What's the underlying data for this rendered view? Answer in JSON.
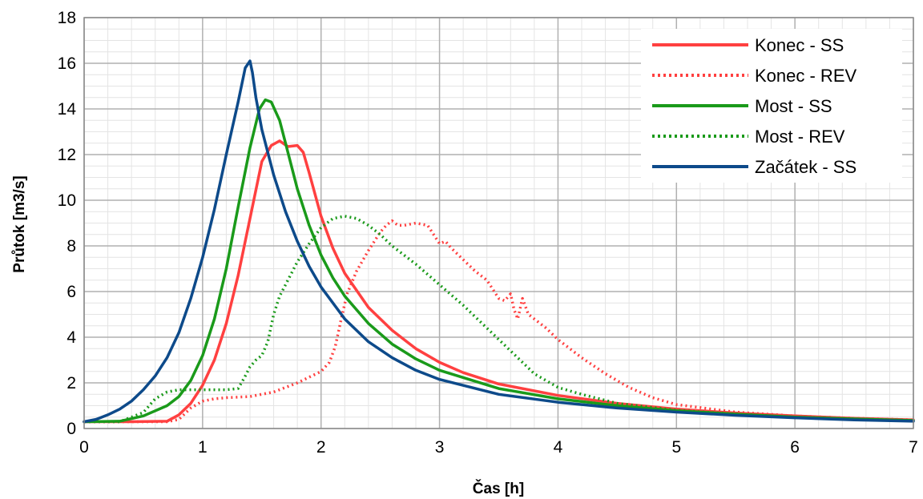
{
  "chart_data": {
    "type": "line",
    "title": "",
    "xlabel": "Čas [h]",
    "ylabel": "Průtok [m3/s]",
    "xlim": [
      0,
      7
    ],
    "ylim": [
      0,
      18
    ],
    "x_ticks": [
      0,
      1,
      2,
      3,
      4,
      5,
      6,
      7
    ],
    "y_ticks": [
      0,
      2,
      4,
      6,
      8,
      10,
      12,
      14,
      16,
      18
    ],
    "grid": true,
    "legend_position": "top-right",
    "series": [
      {
        "name": "Konec - SS",
        "color": "#ff4040",
        "style": "solid",
        "points": [
          [
            0,
            0.3
          ],
          [
            0.4,
            0.3
          ],
          [
            0.7,
            0.32
          ],
          [
            0.8,
            0.6
          ],
          [
            0.9,
            1.1
          ],
          [
            1.0,
            1.9
          ],
          [
            1.1,
            3.0
          ],
          [
            1.2,
            4.6
          ],
          [
            1.3,
            6.7
          ],
          [
            1.4,
            9.2
          ],
          [
            1.5,
            11.7
          ],
          [
            1.58,
            12.4
          ],
          [
            1.65,
            12.6
          ],
          [
            1.72,
            12.35
          ],
          [
            1.8,
            12.4
          ],
          [
            1.85,
            12.1
          ],
          [
            1.9,
            11.2
          ],
          [
            2.0,
            9.3
          ],
          [
            2.1,
            7.9
          ],
          [
            2.2,
            6.8
          ],
          [
            2.4,
            5.3
          ],
          [
            2.6,
            4.3
          ],
          [
            2.8,
            3.5
          ],
          [
            3.0,
            2.9
          ],
          [
            3.2,
            2.45
          ],
          [
            3.5,
            1.95
          ],
          [
            4.0,
            1.45
          ],
          [
            4.5,
            1.1
          ],
          [
            5.0,
            0.85
          ],
          [
            5.5,
            0.68
          ],
          [
            6.0,
            0.55
          ],
          [
            6.5,
            0.45
          ],
          [
            7.0,
            0.38
          ]
        ]
      },
      {
        "name": "Konec - REV",
        "color": "#ff4040",
        "style": "dotted",
        "points": [
          [
            0,
            0.3
          ],
          [
            0.7,
            0.3
          ],
          [
            0.8,
            0.4
          ],
          [
            0.9,
            0.9
          ],
          [
            1.0,
            1.2
          ],
          [
            1.1,
            1.3
          ],
          [
            1.2,
            1.35
          ],
          [
            1.4,
            1.4
          ],
          [
            1.6,
            1.6
          ],
          [
            1.8,
            2.0
          ],
          [
            2.0,
            2.5
          ],
          [
            2.07,
            2.9
          ],
          [
            2.12,
            3.6
          ],
          [
            2.17,
            4.8
          ],
          [
            2.22,
            5.9
          ],
          [
            2.3,
            6.9
          ],
          [
            2.4,
            7.8
          ],
          [
            2.5,
            8.6
          ],
          [
            2.55,
            8.9
          ],
          [
            2.6,
            9.1
          ],
          [
            2.65,
            8.9
          ],
          [
            2.7,
            8.9
          ],
          [
            2.8,
            9.0
          ],
          [
            2.9,
            8.9
          ],
          [
            2.95,
            8.5
          ],
          [
            3.0,
            8.1
          ],
          [
            3.05,
            8.2
          ],
          [
            3.1,
            7.9
          ],
          [
            3.2,
            7.4
          ],
          [
            3.3,
            6.9
          ],
          [
            3.4,
            6.5
          ],
          [
            3.5,
            5.7
          ],
          [
            3.55,
            5.6
          ],
          [
            3.6,
            5.9
          ],
          [
            3.63,
            5.2
          ],
          [
            3.66,
            4.8
          ],
          [
            3.7,
            5.7
          ],
          [
            3.75,
            5.0
          ],
          [
            3.8,
            4.8
          ],
          [
            3.9,
            4.4
          ],
          [
            4.0,
            3.9
          ],
          [
            4.2,
            3.1
          ],
          [
            4.4,
            2.4
          ],
          [
            4.6,
            1.8
          ],
          [
            4.8,
            1.35
          ],
          [
            5.0,
            1.05
          ],
          [
            5.5,
            0.72
          ],
          [
            6.0,
            0.55
          ],
          [
            6.5,
            0.45
          ],
          [
            7.0,
            0.38
          ]
        ]
      },
      {
        "name": "Most - SS",
        "color": "#1a9a1a",
        "style": "solid",
        "points": [
          [
            0,
            0.3
          ],
          [
            0.3,
            0.32
          ],
          [
            0.5,
            0.55
          ],
          [
            0.7,
            1.0
          ],
          [
            0.8,
            1.4
          ],
          [
            0.9,
            2.1
          ],
          [
            1.0,
            3.2
          ],
          [
            1.1,
            4.8
          ],
          [
            1.2,
            7.0
          ],
          [
            1.3,
            9.7
          ],
          [
            1.4,
            12.3
          ],
          [
            1.48,
            14.0
          ],
          [
            1.53,
            14.4
          ],
          [
            1.58,
            14.3
          ],
          [
            1.65,
            13.5
          ],
          [
            1.7,
            12.5
          ],
          [
            1.8,
            10.5
          ],
          [
            1.9,
            8.9
          ],
          [
            2.0,
            7.6
          ],
          [
            2.1,
            6.6
          ],
          [
            2.2,
            5.8
          ],
          [
            2.4,
            4.6
          ],
          [
            2.6,
            3.7
          ],
          [
            2.8,
            3.05
          ],
          [
            3.0,
            2.55
          ],
          [
            3.5,
            1.75
          ],
          [
            4.0,
            1.3
          ],
          [
            4.5,
            1.0
          ],
          [
            5.0,
            0.78
          ],
          [
            5.5,
            0.63
          ],
          [
            6.0,
            0.5
          ],
          [
            6.5,
            0.42
          ],
          [
            7.0,
            0.35
          ]
        ]
      },
      {
        "name": "Most - REV",
        "color": "#1a9a1a",
        "style": "dotted",
        "points": [
          [
            0,
            0.3
          ],
          [
            0.3,
            0.3
          ],
          [
            0.5,
            0.7
          ],
          [
            0.6,
            1.3
          ],
          [
            0.7,
            1.6
          ],
          [
            0.8,
            1.7
          ],
          [
            1.0,
            1.7
          ],
          [
            1.2,
            1.7
          ],
          [
            1.3,
            1.75
          ],
          [
            1.35,
            2.2
          ],
          [
            1.4,
            2.7
          ],
          [
            1.45,
            3.0
          ],
          [
            1.5,
            3.2
          ],
          [
            1.55,
            3.8
          ],
          [
            1.6,
            5.0
          ],
          [
            1.65,
            5.8
          ],
          [
            1.7,
            6.3
          ],
          [
            1.8,
            7.3
          ],
          [
            1.9,
            8.1
          ],
          [
            2.0,
            8.8
          ],
          [
            2.1,
            9.2
          ],
          [
            2.2,
            9.3
          ],
          [
            2.3,
            9.2
          ],
          [
            2.4,
            8.9
          ],
          [
            2.5,
            8.5
          ],
          [
            2.6,
            8.0
          ],
          [
            2.8,
            7.2
          ],
          [
            3.0,
            6.3
          ],
          [
            3.2,
            5.4
          ],
          [
            3.4,
            4.4
          ],
          [
            3.6,
            3.4
          ],
          [
            3.8,
            2.4
          ],
          [
            4.0,
            1.8
          ],
          [
            4.2,
            1.5
          ],
          [
            4.5,
            1.1
          ],
          [
            5.0,
            0.8
          ],
          [
            5.5,
            0.63
          ],
          [
            6.0,
            0.5
          ],
          [
            6.5,
            0.42
          ],
          [
            7.0,
            0.35
          ]
        ]
      },
      {
        "name": "Začátek - SS",
        "color": "#0d4a8a",
        "style": "solid",
        "points": [
          [
            0,
            0.3
          ],
          [
            0.1,
            0.4
          ],
          [
            0.2,
            0.6
          ],
          [
            0.3,
            0.85
          ],
          [
            0.4,
            1.2
          ],
          [
            0.5,
            1.7
          ],
          [
            0.6,
            2.3
          ],
          [
            0.7,
            3.1
          ],
          [
            0.8,
            4.2
          ],
          [
            0.9,
            5.7
          ],
          [
            1.0,
            7.5
          ],
          [
            1.1,
            9.6
          ],
          [
            1.2,
            12.0
          ],
          [
            1.3,
            14.3
          ],
          [
            1.36,
            15.8
          ],
          [
            1.4,
            16.1
          ],
          [
            1.42,
            15.6
          ],
          [
            1.45,
            14.5
          ],
          [
            1.5,
            13.1
          ],
          [
            1.6,
            11.1
          ],
          [
            1.7,
            9.5
          ],
          [
            1.8,
            8.2
          ],
          [
            1.9,
            7.1
          ],
          [
            2.0,
            6.2
          ],
          [
            2.2,
            4.8
          ],
          [
            2.4,
            3.8
          ],
          [
            2.6,
            3.1
          ],
          [
            2.8,
            2.55
          ],
          [
            3.0,
            2.15
          ],
          [
            3.5,
            1.5
          ],
          [
            4.0,
            1.15
          ],
          [
            4.5,
            0.9
          ],
          [
            5.0,
            0.72
          ],
          [
            5.5,
            0.58
          ],
          [
            6.0,
            0.47
          ],
          [
            6.5,
            0.38
          ],
          [
            7.0,
            0.32
          ]
        ]
      }
    ]
  }
}
